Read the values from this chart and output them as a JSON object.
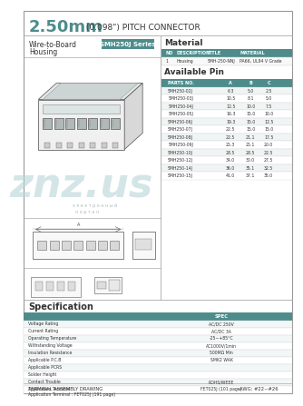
{
  "title_big": "2.50mm",
  "title_small": " (0.098\") PITCH CONNECTOR",
  "header_color": "#4e8c8c",
  "border_color": "#aaaaaa",
  "bg_color": "#ffffff",
  "series_label": "SMH250J Series",
  "type_label": "Wire-to-Board",
  "type_label2": "Housing",
  "material_title": "Material",
  "material_headers": [
    "NO",
    "DESCRIPTION",
    "TITLE",
    "MATERIAL"
  ],
  "material_row": [
    "1",
    "Housing",
    "SMH-250-NNJ",
    "PA66, UL94 V Grade"
  ],
  "available_pin_title": "Available Pin",
  "pin_headers": [
    "PARTS NO.",
    "A",
    "B",
    "C"
  ],
  "pin_rows": [
    [
      "SMH250-02J",
      "6.3",
      "5.0",
      "2.5"
    ],
    [
      "SMH250-03J",
      "10.5",
      "8.1",
      "5.0"
    ],
    [
      "SMH250-04J",
      "12.5",
      "10.0",
      "7.5"
    ],
    [
      "SMH250-05J",
      "16.3",
      "15.0",
      "10.0"
    ],
    [
      "SMH250-06J",
      "19.3",
      "15.0",
      "12.5"
    ],
    [
      "SMH250-07J",
      "22.5",
      "15.0",
      "15.0"
    ],
    [
      "SMH250-08J",
      "22.5",
      "21.1",
      "17.5"
    ],
    [
      "SMH250-09J",
      "25.3",
      "25.1",
      "20.0"
    ],
    [
      "SMH250-10J",
      "28.5",
      "28.5",
      "22.5"
    ],
    [
      "SMH250-12J",
      "34.0",
      "30.0",
      "27.5"
    ],
    [
      "SMH250-14J",
      "36.0",
      "35.1",
      "32.5"
    ],
    [
      "SMH250-15J",
      "41.0",
      "37.1",
      "35.0"
    ]
  ],
  "spec_title": "Specification",
  "spec_rows": [
    [
      "Voltage Rating",
      "AC/DC 250V"
    ],
    [
      "Current Rating",
      "AC/DC 3A"
    ],
    [
      "Operating Temperature",
      "-25~+85°C"
    ],
    [
      "Withstanding Voltage",
      "AC1000V/1min"
    ],
    [
      "Insulation Resistance",
      "500MΩ Min"
    ],
    [
      "Applicable P.C.B",
      "SMK2 WAK"
    ],
    [
      "Applicable PCRS",
      ""
    ],
    [
      "Solder Height",
      ""
    ],
    [
      "Contact Trouble",
      "ROHS/WEEE"
    ],
    [
      "Application Terminal",
      "FET025J (101 page)"
    ]
  ],
  "footer_left": "TERMINAL ASSEMBLY DRAWING",
  "footer_right": "AWG: #22~#26",
  "watermark_color": "#b8d4d8",
  "watermark_text": "znz.us",
  "cyrillic1": "э л е к т р о н н ы й",
  "cyrillic2": "п о р т а л"
}
